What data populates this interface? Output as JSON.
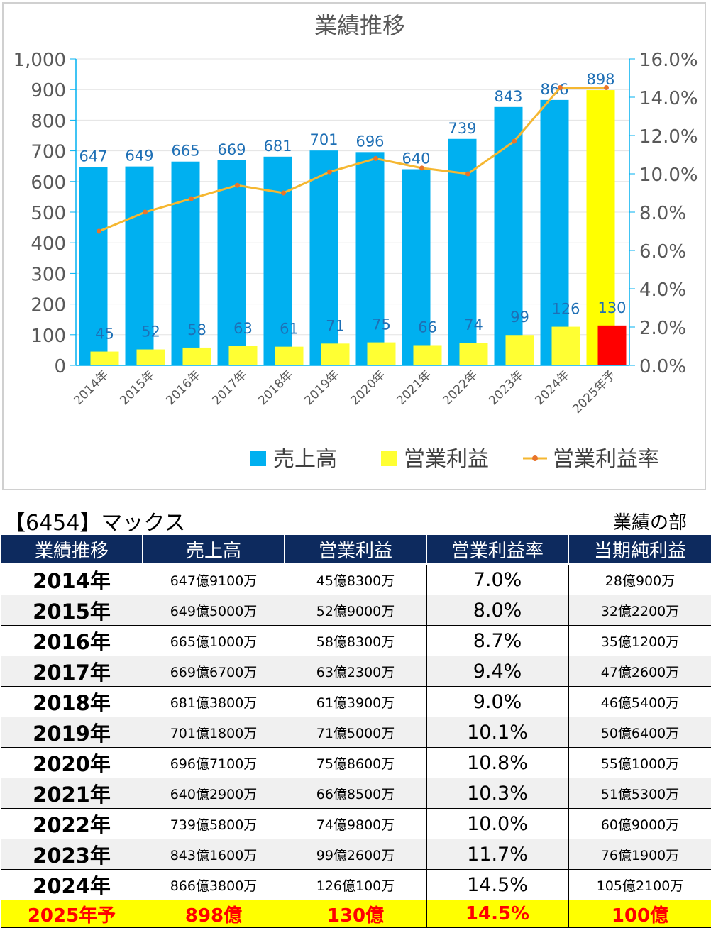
{
  "chart_data": {
    "type": "bar",
    "title": "業績推移",
    "categories": [
      "2014年",
      "2015年",
      "2016年",
      "2017年",
      "2018年",
      "2019年",
      "2020年",
      "2021年",
      "2022年",
      "2023年",
      "2024年",
      "2025年予"
    ],
    "series": [
      {
        "name": "売上高",
        "kind": "bar",
        "axis": "left",
        "color": "#00b0f0",
        "values": [
          647,
          649,
          665,
          669,
          681,
          701,
          696,
          640,
          739,
          843,
          866,
          898
        ]
      },
      {
        "name": "営業利益",
        "kind": "bar",
        "axis": "left",
        "color": "#ffff33",
        "values": [
          45,
          52,
          58,
          63,
          61,
          71,
          75,
          66,
          74,
          99,
          126,
          130
        ]
      },
      {
        "name": "営業利益率",
        "kind": "line",
        "axis": "right",
        "color": "#f5b731",
        "values": [
          7.0,
          8.0,
          8.7,
          9.4,
          9.0,
          10.1,
          10.8,
          10.3,
          10.0,
          11.7,
          14.5,
          14.5
        ]
      }
    ],
    "forecast_colors": {
      "売上高": "#ffff00",
      "営業利益": "#ff0000"
    },
    "y_left": {
      "min": 0,
      "max": 1000,
      "step": 100,
      "ticks": [
        "0",
        "100",
        "200",
        "300",
        "400",
        "500",
        "600",
        "700",
        "800",
        "900",
        "1,000"
      ]
    },
    "y_right": {
      "min": 0,
      "max": 16,
      "step": 2,
      "ticks": [
        "0.0%",
        "2.0%",
        "4.0%",
        "6.0%",
        "8.0%",
        "10.0%",
        "12.0%",
        "14.0%",
        "16.0%"
      ]
    },
    "grid": true,
    "legend_position": "bottom-right"
  },
  "company": "【6454】マックス",
  "section_label": "業績の部",
  "table": {
    "headers": [
      "業績推移",
      "売上高",
      "営業利益",
      "営業利益率",
      "当期純利益"
    ],
    "rows": [
      [
        "2014年",
        "647億9100万",
        "45億8300万",
        "7.0%",
        "28億900万"
      ],
      [
        "2015年",
        "649億5000万",
        "52億9000万",
        "8.0%",
        "32億2200万"
      ],
      [
        "2016年",
        "665億1000万",
        "58億8300万",
        "8.7%",
        "35億1200万"
      ],
      [
        "2017年",
        "669億6700万",
        "63億2300万",
        "9.4%",
        "47億2600万"
      ],
      [
        "2018年",
        "681億3800万",
        "61億3900万",
        "9.0%",
        "46億5400万"
      ],
      [
        "2019年",
        "701億1800万",
        "71億5000万",
        "10.1%",
        "50億6400万"
      ],
      [
        "2020年",
        "696億7100万",
        "75億8600万",
        "10.8%",
        "55億1000万"
      ],
      [
        "2021年",
        "640億2900万",
        "66億8500万",
        "10.3%",
        "51億5300万"
      ],
      [
        "2022年",
        "739億5800万",
        "74億9800万",
        "10.0%",
        "60億9000万"
      ],
      [
        "2023年",
        "843億1600万",
        "99億2600万",
        "11.7%",
        "76億1900万"
      ],
      [
        "2024年",
        "866億3800万",
        "126億100万",
        "14.5%",
        "105億2100万"
      ]
    ],
    "forecast_row": [
      "2025年予",
      "898億",
      "130億",
      "14.5%",
      "100億"
    ]
  }
}
